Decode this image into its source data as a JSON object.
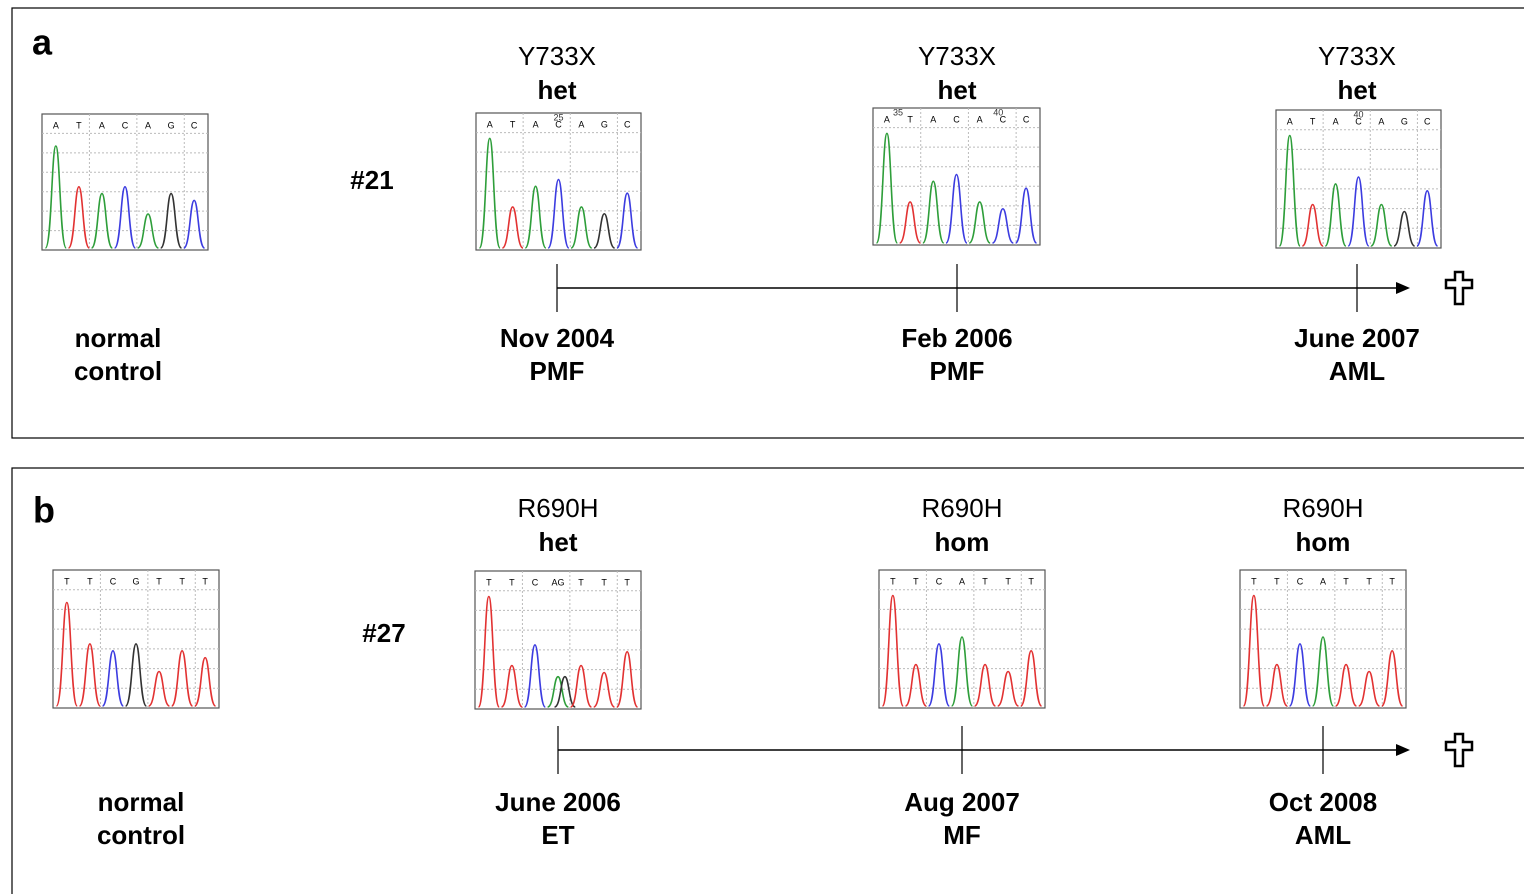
{
  "panels": [
    {
      "label": "a",
      "patient": "#21",
      "control": {
        "line1": "normal",
        "line2": "control",
        "bases": [
          "A",
          "T",
          "A",
          "C",
          "A",
          "G",
          "C"
        ],
        "markers": []
      },
      "timepoints": [
        {
          "mutation": "Y733X",
          "zygosity": "het",
          "date": "Nov 2004",
          "diagnosis": "PMF",
          "bases": [
            "A",
            "T",
            "A",
            "C",
            "A",
            "G",
            "C"
          ],
          "markers": [
            "25"
          ]
        },
        {
          "mutation": "Y733X",
          "zygosity": "het",
          "date": "Feb 2006",
          "diagnosis": "PMF",
          "bases": [
            "A",
            "T",
            "A",
            "C",
            "A",
            "C",
            "C"
          ],
          "markers": [
            "35",
            "40"
          ]
        },
        {
          "mutation": "Y733X",
          "zygosity": "het",
          "date": "June 2007",
          "diagnosis": "AML",
          "bases": [
            "A",
            "T",
            "A",
            "C",
            "A",
            "G",
            "C"
          ],
          "markers": [
            "40"
          ]
        }
      ]
    },
    {
      "label": "b",
      "patient": "#27",
      "control": {
        "line1": "normal",
        "line2": "control",
        "bases": [
          "T",
          "T",
          "C",
          "G",
          "T",
          "T",
          "T"
        ],
        "markers": []
      },
      "timepoints": [
        {
          "mutation": "R690H",
          "zygosity": "het",
          "date": "June 2006",
          "diagnosis": "ET",
          "bases": [
            "T",
            "T",
            "C",
            "AG",
            "T",
            "T",
            "T"
          ],
          "markers": []
        },
        {
          "mutation": "R690H",
          "zygosity": "hom",
          "date": "Aug 2007",
          "diagnosis": "MF",
          "bases": [
            "T",
            "T",
            "C",
            "A",
            "T",
            "T",
            "T"
          ],
          "markers": []
        },
        {
          "mutation": "R690H",
          "zygosity": "hom",
          "date": "Oct 2008",
          "diagnosis": "AML",
          "bases": [
            "T",
            "T",
            "C",
            "A",
            "T",
            "T",
            "T"
          ],
          "markers": []
        }
      ]
    }
  ]
}
